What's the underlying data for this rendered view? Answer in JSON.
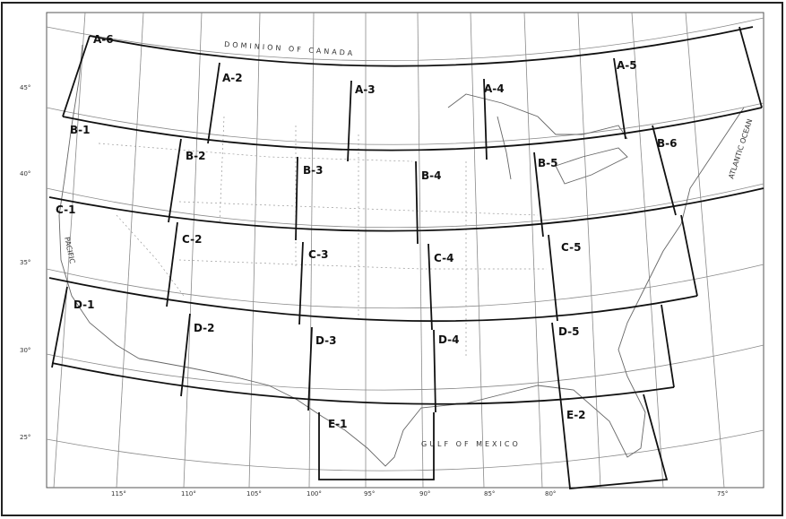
{
  "map": {
    "zones": [
      {
        "id": "A-2",
        "label": "A-2"
      },
      {
        "id": "A-3",
        "label": "A-3"
      },
      {
        "id": "A-4",
        "label": "A-4"
      },
      {
        "id": "A-5",
        "label": "A-5"
      },
      {
        "id": "A-6",
        "label": "A-6"
      },
      {
        "id": "B-1",
        "label": "B-1"
      },
      {
        "id": "B-2",
        "label": "B-2"
      },
      {
        "id": "B-3",
        "label": "B-3"
      },
      {
        "id": "B-4",
        "label": "B-4"
      },
      {
        "id": "B-5",
        "label": "B-5"
      },
      {
        "id": "B-6",
        "label": "B-6"
      },
      {
        "id": "C-1",
        "label": "C-1"
      },
      {
        "id": "C-2",
        "label": "C-2"
      },
      {
        "id": "C-3",
        "label": "C-3"
      },
      {
        "id": "C-4",
        "label": "C-4"
      },
      {
        "id": "C-5",
        "label": "C-5"
      },
      {
        "id": "D-1",
        "label": "D-1"
      },
      {
        "id": "D-2",
        "label": "D-2"
      },
      {
        "id": "D-3",
        "label": "D-3"
      },
      {
        "id": "D-4",
        "label": "D-4"
      },
      {
        "id": "D-5",
        "label": "D-5"
      },
      {
        "id": "E-1",
        "label": "E-1"
      },
      {
        "id": "E-2",
        "label": "E-2"
      }
    ],
    "latitude_labels": [
      "45°",
      "40°",
      "35°",
      "30°",
      "25°"
    ],
    "longitude_labels": [
      "115°",
      "110°",
      "105°",
      "100°",
      "95°",
      "90°",
      "85°",
      "80°",
      "75°"
    ],
    "place_labels": {
      "dominion": "DOMINION OF CANADA",
      "gulf": "GULF OF MEXICO",
      "atlantic": "ATLANTIC OCEAN",
      "pacific": "PACIFIC"
    },
    "colors": {
      "ink": "#111111",
      "grid": "#8a8a8a",
      "paper": "#ffffff"
    }
  }
}
